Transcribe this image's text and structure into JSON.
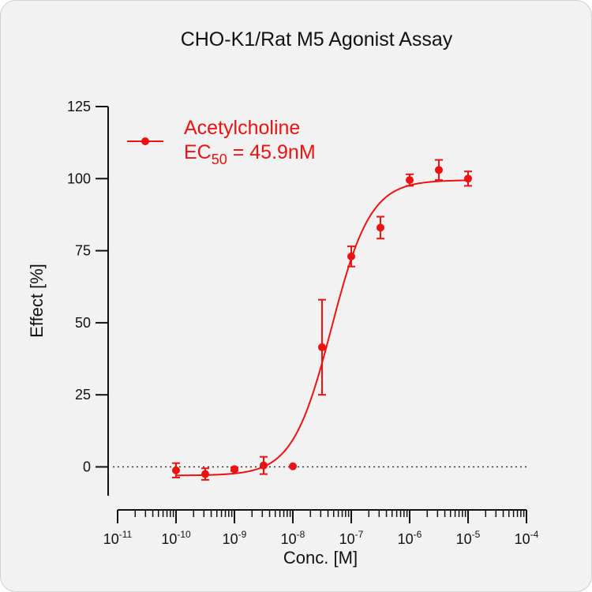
{
  "chart_data": {
    "type": "scatter",
    "title": "CHO-K1/Rat M5 Agonist Assay",
    "xlabel": "Conc. [M]",
    "ylabel": "Effect  [%]",
    "x_scale": "log",
    "x_tick_base": "10",
    "x_tick_exponents": [
      "-11",
      "-10",
      "-9",
      "-8",
      "-7",
      "-6",
      "-5",
      "-4"
    ],
    "xlim": [
      1e-11,
      0.0001
    ],
    "ylim": [
      -10,
      125
    ],
    "y_ticks": [
      0,
      25,
      50,
      75,
      100,
      125
    ],
    "reference_line": {
      "y": 0,
      "style": "dotted"
    },
    "grid": false,
    "legend_position": "top-left",
    "series": [
      {
        "name": "Acetylcholine",
        "color": "#ee1111",
        "ec50_label_main": "EC",
        "ec50_label_sub": "50",
        "ec50_label_value": " = 45.9nM",
        "points": [
          {
            "x": 1e-10,
            "y": -1.2,
            "err": 2.5
          },
          {
            "x": 3.16e-10,
            "y": -2.5,
            "err": 2.0
          },
          {
            "x": 1e-09,
            "y": -0.8,
            "err": 0.6
          },
          {
            "x": 3.16e-09,
            "y": 0.5,
            "err": 3.0
          },
          {
            "x": 1e-08,
            "y": 0.2,
            "err": 0.3
          },
          {
            "x": 3.16e-08,
            "y": 41.5,
            "err": 16.5
          },
          {
            "x": 1e-07,
            "y": 73.0,
            "err": 3.5
          },
          {
            "x": 3.16e-07,
            "y": 83.0,
            "err": 3.8
          },
          {
            "x": 1e-06,
            "y": 99.5,
            "err": 2.0
          },
          {
            "x": 3.16e-06,
            "y": 103.0,
            "err": 3.5
          },
          {
            "x": 1e-05,
            "y": 100.0,
            "err": 2.5
          }
        ],
        "fit": {
          "bottom": -3.0,
          "top": 99.5,
          "ec50": 4.59e-08,
          "hill": 1.3
        }
      }
    ]
  }
}
